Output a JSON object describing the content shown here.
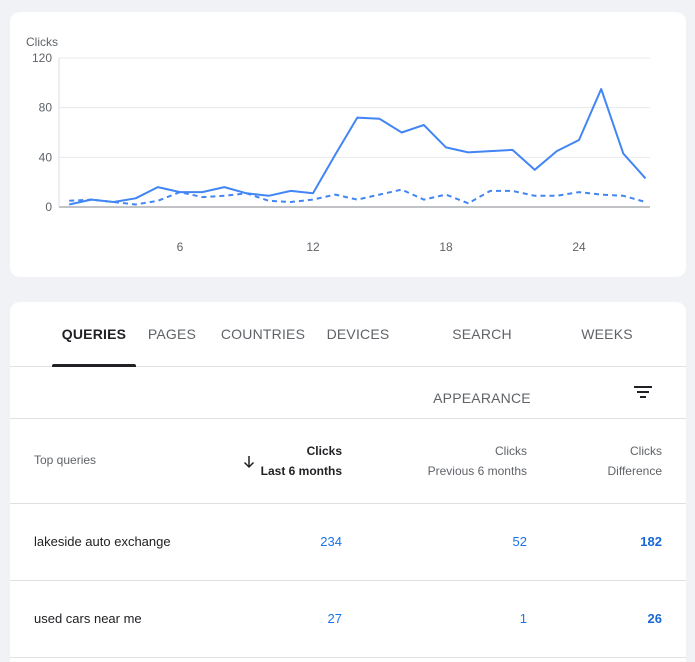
{
  "chart_data": {
    "type": "line",
    "ylabel": "Clicks",
    "ylim": [
      0,
      120
    ],
    "yticks": [
      "120",
      "80",
      "40",
      "0"
    ],
    "xticks": [
      "6",
      "12",
      "18",
      "24"
    ],
    "x": [
      1,
      2,
      3,
      4,
      5,
      6,
      7,
      8,
      9,
      10,
      11,
      12,
      13,
      14,
      15,
      16,
      17,
      18,
      19,
      20,
      21,
      22,
      23,
      24,
      25,
      26,
      27
    ],
    "series": [
      {
        "style": "solid",
        "color": "#4285f4",
        "values": [
          2,
          6,
          4,
          7,
          16,
          12,
          12,
          16,
          11,
          9,
          13,
          11,
          42,
          72,
          71,
          60,
          66,
          48,
          44,
          45,
          46,
          30,
          45,
          54,
          95,
          43,
          23
        ]
      },
      {
        "style": "dashed",
        "color": "#4285f4",
        "values": [
          5,
          6,
          4,
          2,
          5,
          12,
          8,
          9,
          11,
          5,
          4,
          6,
          10,
          6,
          10,
          14,
          6,
          10,
          3,
          13,
          13,
          9,
          9,
          12,
          10,
          9,
          4
        ]
      }
    ]
  },
  "tabs": [
    "QUERIES",
    "PAGES",
    "COUNTRIES",
    "DEVICES",
    "SEARCH APPEARANCE",
    "WEEKS"
  ],
  "table": {
    "query_header": "Top queries",
    "columns": [
      {
        "line1": "Clicks",
        "line2": "Last 6 months"
      },
      {
        "line1": "Clicks",
        "line2": "Previous 6 months"
      },
      {
        "line1": "Clicks",
        "line2": "Difference"
      }
    ],
    "rows": [
      {
        "query": "lakeside auto exchange",
        "last": "234",
        "previous": "52",
        "diff": "182"
      },
      {
        "query": "used cars near me",
        "last": "27",
        "previous": "1",
        "diff": "26"
      }
    ]
  }
}
